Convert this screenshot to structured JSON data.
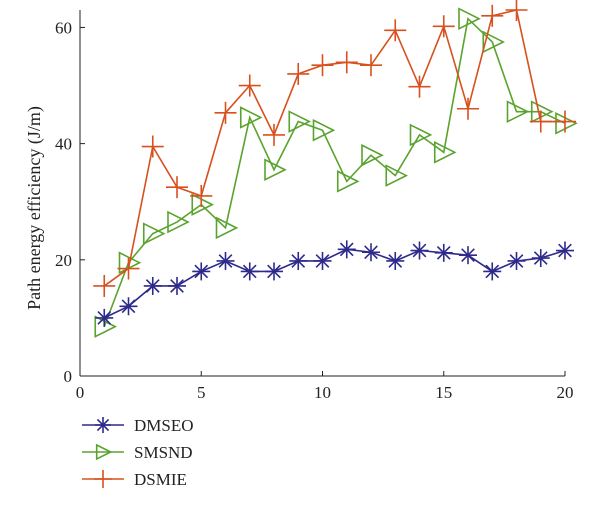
{
  "chart_data": {
    "type": "line",
    "title": "",
    "xlabel": "",
    "ylabel": "Path energy efficiency (J/m)",
    "xlim": [
      0,
      20
    ],
    "ylim": [
      0,
      63
    ],
    "xticks": [
      "0",
      "5",
      "10",
      "15",
      "20"
    ],
    "yticks": [
      "0",
      "20",
      "40",
      "60"
    ],
    "grid": false,
    "legend_position": "bottom-left, below plot",
    "x": [
      1,
      2,
      3,
      4,
      5,
      6,
      7,
      8,
      9,
      10,
      11,
      12,
      13,
      14,
      15,
      16,
      17,
      18,
      19,
      20
    ],
    "series": [
      {
        "name": "DMSEO",
        "color": "#2e2a8c",
        "marker": "asterisk",
        "values": [
          10,
          12,
          15.5,
          15.5,
          18,
          19.8,
          18,
          18,
          19.8,
          19.8,
          21.8,
          21.3,
          19.8,
          21.6,
          21.2,
          20.8,
          18,
          19.8,
          20.3,
          21.6
        ]
      },
      {
        "name": "SMSND",
        "color": "#5aa32e",
        "marker": "triangle-right",
        "values": [
          8.5,
          19.5,
          24.5,
          26.5,
          29.5,
          25.5,
          44.5,
          35.5,
          43.8,
          42.3,
          33.5,
          38,
          34.5,
          41.5,
          38.5,
          61.5,
          57.5,
          45.5,
          45.5,
          43.5
        ]
      },
      {
        "name": "DSMIE",
        "color": "#d8501e",
        "marker": "plus",
        "values": [
          15.5,
          18.5,
          39.5,
          32.5,
          31,
          45.3,
          50,
          41.5,
          52,
          53.5,
          54,
          53.5,
          59.5,
          49.8,
          60.2,
          46,
          62,
          63,
          43.8,
          43.8
        ]
      }
    ]
  }
}
